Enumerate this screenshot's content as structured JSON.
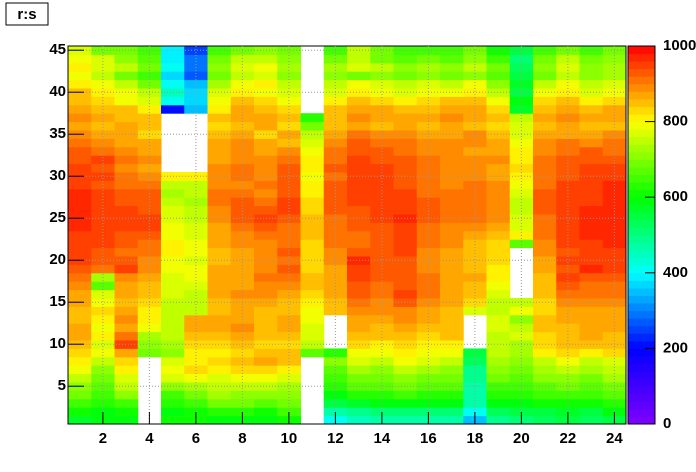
{
  "chart_data": {
    "type": "heatmap",
    "title": "r:s",
    "x": [
      1,
      2,
      3,
      4,
      5,
      6,
      7,
      8,
      9,
      10,
      11,
      12,
      13,
      14,
      15,
      16,
      17,
      18,
      19,
      20,
      21,
      22,
      23,
      24
    ],
    "y": [
      1,
      2,
      3,
      4,
      5,
      6,
      7,
      8,
      9,
      10,
      11,
      12,
      13,
      14,
      15,
      16,
      17,
      18,
      19,
      20,
      21,
      22,
      23,
      24,
      25,
      26,
      27,
      28,
      29,
      30,
      31,
      32,
      33,
      34,
      35,
      36,
      37,
      38,
      39,
      40,
      41,
      42,
      43,
      44,
      45
    ],
    "z": [
      [
        580,
        600,
        600,
        null,
        620,
        620,
        600,
        600,
        600,
        620,
        null,
        420,
        460,
        480,
        480,
        480,
        480,
        360,
        500,
        520,
        540,
        560,
        540,
        560
      ],
      [
        620,
        600,
        620,
        null,
        600,
        620,
        640,
        640,
        620,
        660,
        null,
        480,
        500,
        520,
        520,
        520,
        520,
        420,
        540,
        560,
        560,
        580,
        560,
        600
      ],
      [
        660,
        640,
        660,
        null,
        640,
        660,
        700,
        700,
        680,
        700,
        null,
        560,
        580,
        600,
        600,
        600,
        600,
        480,
        600,
        600,
        620,
        620,
        620,
        640
      ],
      [
        700,
        660,
        720,
        null,
        660,
        700,
        740,
        720,
        720,
        720,
        null,
        600,
        640,
        640,
        660,
        640,
        640,
        480,
        640,
        640,
        660,
        660,
        660,
        680
      ],
      [
        720,
        680,
        760,
        null,
        720,
        740,
        760,
        760,
        760,
        740,
        null,
        640,
        680,
        680,
        700,
        680,
        680,
        480,
        660,
        660,
        680,
        700,
        680,
        700
      ],
      [
        760,
        700,
        780,
        null,
        780,
        800,
        780,
        800,
        800,
        780,
        null,
        660,
        700,
        700,
        720,
        700,
        700,
        500,
        700,
        680,
        720,
        720,
        700,
        740
      ],
      [
        800,
        720,
        820,
        null,
        800,
        840,
        820,
        840,
        840,
        820,
        null,
        680,
        740,
        720,
        760,
        740,
        720,
        500,
        720,
        700,
        740,
        760,
        740,
        760
      ],
      [
        820,
        760,
        840,
        null,
        780,
        820,
        840,
        860,
        880,
        860,
        null,
        720,
        780,
        760,
        800,
        780,
        760,
        540,
        740,
        720,
        760,
        800,
        760,
        780
      ],
      [
        840,
        800,
        880,
        700,
        720,
        820,
        820,
        840,
        860,
        860,
        680,
        640,
        800,
        800,
        820,
        800,
        800,
        560,
        760,
        740,
        820,
        840,
        820,
        840
      ],
      [
        860,
        780,
        960,
        720,
        740,
        840,
        840,
        860,
        840,
        840,
        760,
        null,
        840,
        820,
        840,
        820,
        820,
        null,
        760,
        740,
        840,
        860,
        860,
        860
      ],
      [
        880,
        820,
        920,
        740,
        760,
        860,
        860,
        880,
        860,
        860,
        780,
        null,
        860,
        860,
        860,
        840,
        860,
        null,
        760,
        780,
        840,
        860,
        880,
        860
      ],
      [
        880,
        800,
        880,
        800,
        760,
        880,
        880,
        900,
        860,
        880,
        780,
        null,
        880,
        860,
        880,
        860,
        860,
        null,
        780,
        760,
        860,
        860,
        880,
        880
      ],
      [
        860,
        820,
        900,
        820,
        760,
        880,
        880,
        880,
        860,
        880,
        800,
        null,
        880,
        880,
        900,
        880,
        860,
        null,
        780,
        720,
        860,
        880,
        880,
        880
      ],
      [
        860,
        840,
        880,
        820,
        760,
        760,
        860,
        880,
        860,
        860,
        800,
        860,
        900,
        900,
        900,
        880,
        860,
        780,
        760,
        800,
        840,
        880,
        880,
        880
      ],
      [
        880,
        800,
        860,
        840,
        760,
        760,
        860,
        880,
        880,
        860,
        820,
        860,
        920,
        900,
        940,
        900,
        880,
        840,
        760,
        760,
        840,
        900,
        900,
        900
      ],
      [
        880,
        780,
        880,
        860,
        780,
        760,
        880,
        900,
        900,
        880,
        840,
        880,
        940,
        920,
        960,
        920,
        880,
        860,
        780,
        null,
        860,
        920,
        920,
        920
      ],
      [
        900,
        680,
        880,
        860,
        780,
        780,
        880,
        880,
        900,
        900,
        860,
        880,
        940,
        920,
        940,
        920,
        880,
        860,
        800,
        null,
        860,
        940,
        920,
        920
      ],
      [
        920,
        740,
        900,
        880,
        780,
        800,
        880,
        880,
        920,
        920,
        860,
        880,
        960,
        940,
        940,
        920,
        880,
        880,
        820,
        null,
        860,
        960,
        940,
        940
      ],
      [
        940,
        920,
        960,
        900,
        800,
        800,
        880,
        880,
        900,
        940,
        840,
        880,
        960,
        940,
        940,
        900,
        880,
        860,
        820,
        null,
        880,
        940,
        980,
        960
      ],
      [
        960,
        940,
        940,
        900,
        800,
        780,
        860,
        880,
        900,
        920,
        840,
        900,
        980,
        940,
        940,
        900,
        880,
        860,
        840,
        null,
        880,
        960,
        960,
        960
      ],
      [
        960,
        940,
        920,
        920,
        820,
        800,
        860,
        880,
        900,
        940,
        840,
        900,
        940,
        940,
        960,
        900,
        880,
        860,
        840,
        null,
        900,
        940,
        960,
        960
      ],
      [
        960,
        960,
        940,
        920,
        820,
        800,
        880,
        900,
        900,
        920,
        840,
        920,
        920,
        940,
        960,
        920,
        900,
        860,
        840,
        680,
        900,
        960,
        960,
        980
      ],
      [
        960,
        960,
        940,
        940,
        800,
        780,
        880,
        900,
        920,
        920,
        860,
        920,
        920,
        940,
        960,
        920,
        900,
        880,
        860,
        820,
        920,
        960,
        980,
        980
      ],
      [
        980,
        960,
        960,
        960,
        800,
        780,
        880,
        920,
        940,
        920,
        860,
        920,
        940,
        940,
        960,
        920,
        900,
        900,
        880,
        780,
        920,
        960,
        980,
        980
      ],
      [
        980,
        960,
        960,
        960,
        780,
        760,
        900,
        940,
        960,
        940,
        860,
        920,
        940,
        960,
        980,
        940,
        920,
        920,
        900,
        780,
        920,
        960,
        980,
        980
      ],
      [
        980,
        960,
        960,
        940,
        780,
        760,
        900,
        940,
        940,
        960,
        840,
        940,
        940,
        960,
        960,
        940,
        920,
        920,
        900,
        760,
        940,
        960,
        980,
        980
      ],
      [
        980,
        960,
        940,
        940,
        760,
        740,
        920,
        940,
        920,
        960,
        840,
        940,
        960,
        960,
        960,
        940,
        920,
        920,
        900,
        760,
        940,
        960,
        960,
        980
      ],
      [
        980,
        960,
        940,
        940,
        740,
        760,
        920,
        920,
        900,
        940,
        820,
        940,
        960,
        960,
        960,
        920,
        920,
        920,
        900,
        780,
        940,
        960,
        960,
        980
      ],
      [
        960,
        940,
        920,
        920,
        760,
        760,
        900,
        900,
        920,
        940,
        820,
        940,
        960,
        960,
        940,
        920,
        900,
        920,
        900,
        800,
        920,
        960,
        960,
        980
      ],
      [
        950,
        960,
        920,
        900,
        820,
        820,
        900,
        920,
        900,
        940,
        800,
        920,
        960,
        950,
        940,
        920,
        900,
        900,
        880,
        820,
        920,
        940,
        960,
        960
      ],
      [
        960,
        940,
        900,
        880,
        null,
        null,
        900,
        920,
        900,
        940,
        820,
        940,
        960,
        960,
        940,
        920,
        900,
        900,
        880,
        840,
        920,
        940,
        960,
        960
      ],
      [
        940,
        960,
        920,
        900,
        null,
        null,
        880,
        900,
        900,
        920,
        820,
        920,
        960,
        940,
        940,
        920,
        900,
        900,
        900,
        820,
        920,
        940,
        940,
        940
      ],
      [
        940,
        920,
        900,
        880,
        null,
        null,
        880,
        900,
        880,
        900,
        800,
        920,
        940,
        940,
        920,
        900,
        900,
        880,
        880,
        820,
        900,
        920,
        940,
        920
      ],
      [
        920,
        900,
        880,
        880,
        null,
        null,
        880,
        900,
        880,
        860,
        780,
        900,
        940,
        920,
        920,
        900,
        900,
        900,
        880,
        800,
        900,
        920,
        900,
        920
      ],
      [
        900,
        880,
        880,
        840,
        null,
        null,
        860,
        880,
        840,
        880,
        760,
        880,
        920,
        900,
        900,
        880,
        880,
        900,
        860,
        780,
        880,
        880,
        880,
        900
      ],
      [
        880,
        860,
        880,
        860,
        null,
        null,
        840,
        860,
        880,
        840,
        700,
        860,
        880,
        860,
        880,
        860,
        880,
        860,
        840,
        780,
        860,
        880,
        860,
        860
      ],
      [
        900,
        880,
        860,
        850,
        null,
        null,
        860,
        880,
        880,
        860,
        640,
        860,
        900,
        880,
        880,
        880,
        900,
        880,
        850,
        760,
        880,
        900,
        880,
        880
      ],
      [
        880,
        860,
        850,
        820,
        220,
        350,
        820,
        880,
        860,
        840,
        null,
        850,
        880,
        880,
        860,
        860,
        880,
        880,
        840,
        580,
        860,
        880,
        860,
        880
      ],
      [
        860,
        840,
        800,
        780,
        420,
        380,
        800,
        860,
        840,
        800,
        null,
        820,
        860,
        840,
        820,
        840,
        860,
        860,
        800,
        600,
        840,
        860,
        820,
        840
      ],
      [
        850,
        820,
        800,
        760,
        450,
        380,
        780,
        820,
        800,
        780,
        null,
        780,
        820,
        800,
        780,
        800,
        800,
        820,
        760,
        560,
        800,
        820,
        780,
        800
      ],
      [
        820,
        800,
        760,
        700,
        420,
        350,
        740,
        800,
        820,
        760,
        null,
        760,
        800,
        780,
        760,
        780,
        760,
        800,
        720,
        580,
        760,
        800,
        760,
        780
      ],
      [
        800,
        760,
        700,
        650,
        380,
        280,
        700,
        760,
        780,
        720,
        null,
        720,
        700,
        720,
        700,
        720,
        700,
        720,
        680,
        560,
        700,
        760,
        720,
        740
      ],
      [
        820,
        780,
        750,
        700,
        420,
        300,
        720,
        780,
        800,
        740,
        null,
        740,
        780,
        750,
        720,
        740,
        720,
        750,
        700,
        540,
        720,
        780,
        720,
        740
      ],
      [
        800,
        780,
        720,
        680,
        400,
        300,
        700,
        750,
        760,
        720,
        null,
        700,
        760,
        700,
        680,
        700,
        680,
        720,
        650,
        520,
        700,
        750,
        700,
        720
      ],
      [
        780,
        700,
        700,
        650,
        400,
        250,
        650,
        700,
        720,
        700,
        null,
        650,
        750,
        700,
        650,
        650,
        650,
        700,
        620,
        550,
        650,
        700,
        650,
        700
      ]
    ],
    "xlim": [
      0.5,
      24.5
    ],
    "ylim": [
      0.5,
      45.5
    ],
    "zlim": [
      0,
      1000
    ],
    "xticks": [
      2,
      4,
      6,
      8,
      10,
      12,
      14,
      16,
      18,
      20,
      22,
      24
    ],
    "yticks": [
      5,
      10,
      15,
      20,
      25,
      30,
      35,
      40,
      45
    ],
    "zticks": [
      0,
      200,
      400,
      600,
      800,
      1000
    ],
    "grid": true
  }
}
